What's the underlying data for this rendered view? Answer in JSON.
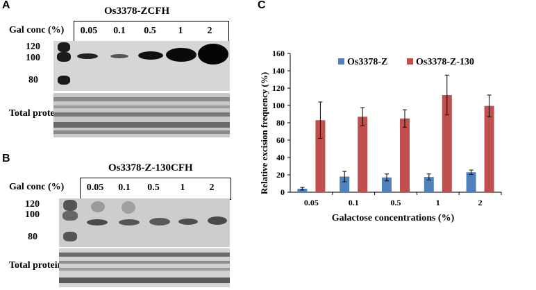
{
  "panels": {
    "A": {
      "letter": "A",
      "title": "Os3378-ZCFH",
      "gal_label": "Gal conc (%)",
      "concentrations": [
        "0.05",
        "0.1",
        "0.5",
        "1",
        "2"
      ],
      "mw_markers": [
        "120",
        "100",
        "80"
      ],
      "total_protein_label": "Total protein"
    },
    "B": {
      "letter": "B",
      "title": "Os3378-Z-130CFH",
      "gal_label": "Gal conc (%)",
      "concentrations": [
        "0.05",
        "0.1",
        "0.5",
        "1",
        "2"
      ],
      "mw_markers": [
        "120",
        "100",
        "80"
      ],
      "total_protein_label": "Total protein"
    },
    "C": {
      "letter": "C"
    }
  },
  "chart_data": {
    "type": "bar",
    "categories": [
      "0.05",
      "0.1",
      "0.5",
      "1",
      "2"
    ],
    "series": [
      {
        "name": "Os3378-Z",
        "color": "#4f81bd",
        "values": [
          4,
          18,
          17,
          17.5,
          23
        ],
        "errors": [
          1.5,
          6,
          4,
          3.5,
          2.5
        ]
      },
      {
        "name": "Os3378-Z-130",
        "color": "#c0504d",
        "values": [
          83,
          87,
          85,
          112,
          99.5
        ],
        "errors": [
          21,
          10.5,
          10,
          23,
          12.5
        ]
      }
    ],
    "xlabel": "Galactose concentrations (%)",
    "ylabel": "Relative excision frequency (%)",
    "ylim": [
      0,
      160
    ],
    "yticks": [
      0,
      20,
      40,
      60,
      80,
      100,
      120,
      140,
      160
    ],
    "legend_position": "top",
    "grid": false
  }
}
